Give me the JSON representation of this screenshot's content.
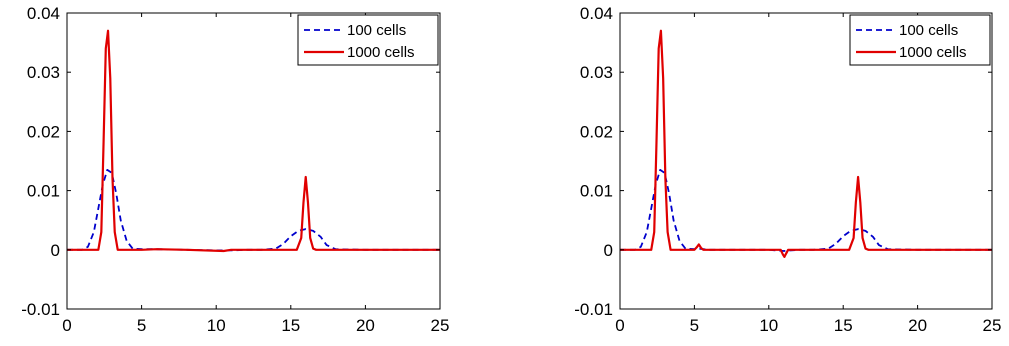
{
  "chart_data": [
    {
      "type": "line",
      "title": "",
      "xlabel": "",
      "ylabel": "",
      "xlim": [
        0,
        25
      ],
      "ylim": [
        -0.01,
        0.04
      ],
      "xticks": [
        "0",
        "5",
        "10",
        "15",
        "20",
        "25"
      ],
      "yticks": [
        "-0.01",
        "0",
        "0.01",
        "0.02",
        "0.03",
        "0.04"
      ],
      "grid": false,
      "legend_position": "top-right",
      "series": [
        {
          "name": "100 cells",
          "color": "#0000cc",
          "style": "dashed",
          "x": [
            0,
            1.0,
            1.4,
            1.8,
            2.1,
            2.4,
            2.7,
            3.0,
            3.3,
            3.6,
            4.0,
            4.4,
            5.0,
            6.0,
            8.0,
            10.0,
            11.0,
            12.0,
            13.0,
            14.0,
            14.5,
            15.0,
            15.5,
            16.0,
            16.5,
            17.0,
            17.4,
            18.0,
            20.0,
            25.0
          ],
          "y": [
            0,
            0,
            0.0005,
            0.003,
            0.007,
            0.011,
            0.0135,
            0.013,
            0.0095,
            0.005,
            0.0015,
            0.0002,
            0.0001,
            0.0001,
            0,
            -0.0001,
            -0.0001,
            0,
            0,
            0.0002,
            0.001,
            0.0023,
            0.0032,
            0.0035,
            0.0032,
            0.0022,
            0.0008,
            0.0001,
            0,
            0
          ]
        },
        {
          "name": "1000 cells",
          "color": "#e00000",
          "style": "solid",
          "x": [
            0,
            2.1,
            2.3,
            2.45,
            2.6,
            2.75,
            2.9,
            3.05,
            3.2,
            3.4,
            5.0,
            6.0,
            8.0,
            10.5,
            11.0,
            12.0,
            15.4,
            15.7,
            15.85,
            16.0,
            16.15,
            16.3,
            16.5,
            16.7,
            20.0,
            25.0
          ],
          "y": [
            0,
            0,
            0.003,
            0.018,
            0.034,
            0.037,
            0.029,
            0.012,
            0.003,
            0,
            0,
            0.0001,
            0,
            -0.0002,
            0,
            0,
            0,
            0.002,
            0.008,
            0.0123,
            0.008,
            0.002,
            0.0002,
            0,
            0,
            0
          ]
        }
      ]
    },
    {
      "type": "line",
      "title": "",
      "xlabel": "",
      "ylabel": "",
      "xlim": [
        0,
        25
      ],
      "ylim": [
        -0.01,
        0.04
      ],
      "xticks": [
        "0",
        "5",
        "10",
        "15",
        "20",
        "25"
      ],
      "yticks": [
        "-0.01",
        "0",
        "0.01",
        "0.02",
        "0.03",
        "0.04"
      ],
      "grid": false,
      "legend_position": "top-right",
      "series": [
        {
          "name": "100 cells",
          "color": "#0000cc",
          "style": "dashed",
          "x": [
            0,
            1.0,
            1.4,
            1.8,
            2.1,
            2.4,
            2.7,
            3.0,
            3.3,
            3.6,
            4.0,
            4.4,
            5.0,
            5.3,
            6.0,
            8.0,
            10.0,
            11.0,
            12.0,
            13.0,
            14.0,
            14.5,
            15.0,
            15.5,
            16.0,
            16.5,
            17.0,
            17.4,
            18.0,
            20.0,
            25.0
          ],
          "y": [
            0,
            0,
            0.0005,
            0.003,
            0.007,
            0.011,
            0.0135,
            0.013,
            0.0095,
            0.005,
            0.0015,
            0.0002,
            0.0001,
            0.0002,
            0,
            0,
            0,
            -0.0002,
            0,
            0,
            0.0002,
            0.001,
            0.0023,
            0.0032,
            0.0035,
            0.0032,
            0.0022,
            0.0008,
            0.0001,
            0,
            0
          ]
        },
        {
          "name": "1000 cells",
          "color": "#e00000",
          "style": "solid",
          "x": [
            0,
            2.1,
            2.3,
            2.45,
            2.6,
            2.75,
            2.9,
            3.05,
            3.2,
            3.4,
            5.0,
            5.15,
            5.3,
            5.45,
            5.6,
            8.0,
            10.8,
            10.95,
            11.05,
            11.15,
            11.3,
            12.0,
            15.4,
            15.7,
            15.85,
            16.0,
            16.15,
            16.3,
            16.5,
            16.7,
            20.0,
            25.0
          ],
          "y": [
            0,
            0,
            0.003,
            0.018,
            0.034,
            0.037,
            0.029,
            0.012,
            0.003,
            0,
            0,
            0.0004,
            0.0009,
            0.0003,
            0,
            0,
            0,
            -0.0008,
            -0.0012,
            -0.0007,
            0,
            0,
            0,
            0.002,
            0.008,
            0.0123,
            0.008,
            0.002,
            0.0002,
            0,
            0,
            0
          ]
        }
      ]
    }
  ]
}
